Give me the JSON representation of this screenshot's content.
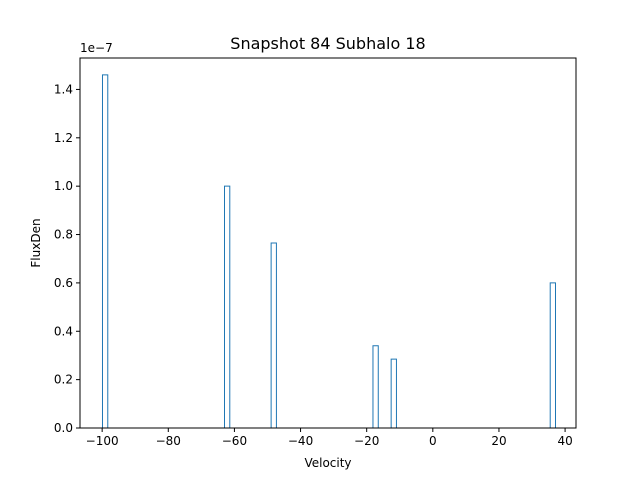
{
  "chart_data": {
    "type": "bar",
    "title": "Snapshot 84 Subhalo 18",
    "xlabel": "Velocity",
    "ylabel": "FluxDen",
    "y_offset_label": "1e−7",
    "x_scale": 1,
    "y_scale": 1e-07,
    "xlim": [
      -106.7,
      43.3
    ],
    "ylim": [
      0,
      1.53
    ],
    "x_ticks": [
      -100,
      -80,
      -60,
      -40,
      -20,
      0,
      20,
      40
    ],
    "x_tick_labels": [
      "−100",
      "−80",
      "−60",
      "−40",
      "−20",
      "0",
      "20",
      "40"
    ],
    "y_ticks": [
      0.0,
      0.2,
      0.4,
      0.6,
      0.8,
      1.0,
      1.2,
      1.4
    ],
    "y_tick_labels": [
      "0.0",
      "0.2",
      "0.4",
      "0.6",
      "0.8",
      "1.0",
      "1.2",
      "1.4"
    ],
    "bars": [
      {
        "x_left": -99.9,
        "x_right": -98.3,
        "value": 1.46
      },
      {
        "x_left": -63.0,
        "x_right": -61.4,
        "value": 1.0
      },
      {
        "x_left": -48.9,
        "x_right": -47.3,
        "value": 0.765
      },
      {
        "x_left": -18.1,
        "x_right": -16.5,
        "value": 0.34
      },
      {
        "x_left": -12.6,
        "x_right": -11.0,
        "value": 0.285
      },
      {
        "x_left": 35.5,
        "x_right": 37.1,
        "value": 0.6
      }
    ],
    "style": "step",
    "grid": false,
    "colors": {
      "bar_edge": "#1f77b4",
      "axes": "#000000"
    }
  }
}
